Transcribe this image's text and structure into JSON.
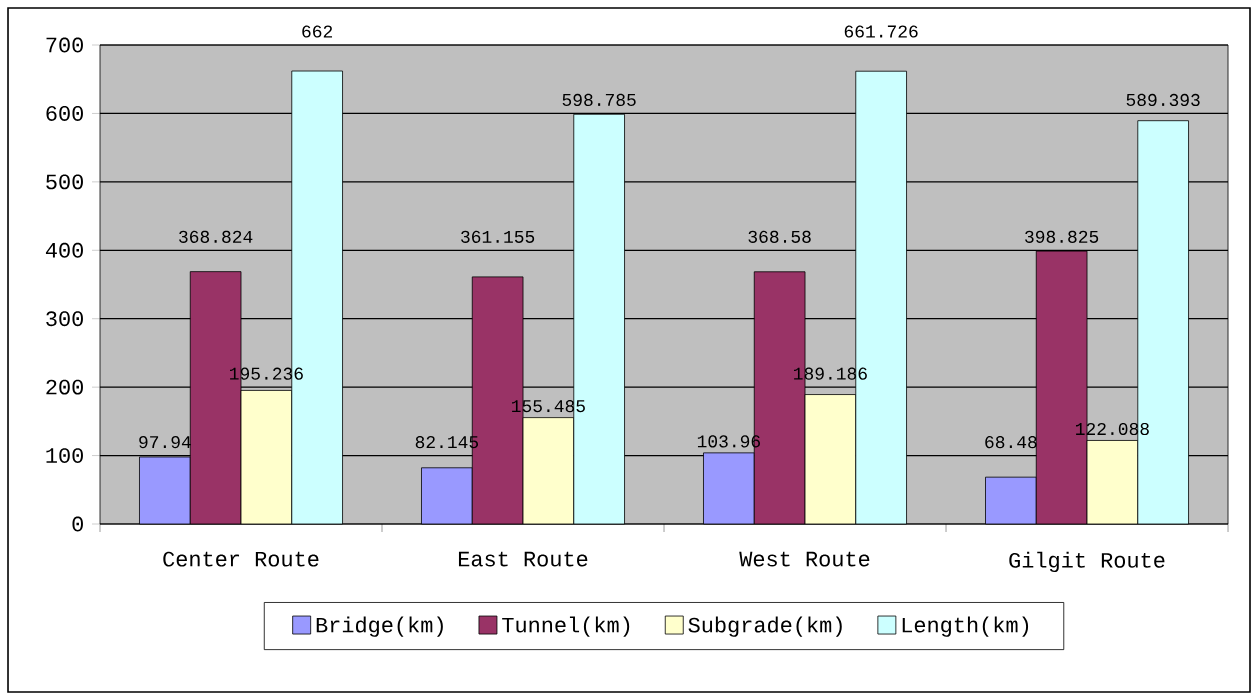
{
  "chart_data": {
    "type": "bar",
    "categories": [
      "Center Route",
      "East Route",
      "West Route",
      "Gilgit Route"
    ],
    "series": [
      {
        "name": "Bridge(km)",
        "color": "#9999ff",
        "values": [
          97.94,
          82.145,
          103.96,
          68.48
        ],
        "value_labels": [
          "97.94",
          "82.145",
          "103.96",
          "68.48"
        ]
      },
      {
        "name": "Tunnel(km)",
        "color": "#993366",
        "values": [
          368.824,
          361.155,
          368.58,
          398.825
        ],
        "value_labels": [
          "368.824",
          "361.155",
          "368.58",
          "398.825"
        ]
      },
      {
        "name": "Subgrade(km)",
        "color": "#ffffcc",
        "values": [
          195.236,
          155.485,
          189.186,
          122.088
        ],
        "value_labels": [
          "195.236",
          "155.485",
          "189.186",
          "122.088"
        ]
      },
      {
        "name": "Length(km)",
        "color": "#ccffff",
        "values": [
          662,
          598.785,
          661.726,
          589.393
        ],
        "value_labels": [
          "662",
          "598.785",
          "661.726",
          "589.393"
        ]
      }
    ],
    "ylim": [
      0,
      700
    ],
    "yticks": [
      0,
      100,
      200,
      300,
      400,
      500,
      600,
      700
    ],
    "grid": "y",
    "legend": "bottom"
  }
}
